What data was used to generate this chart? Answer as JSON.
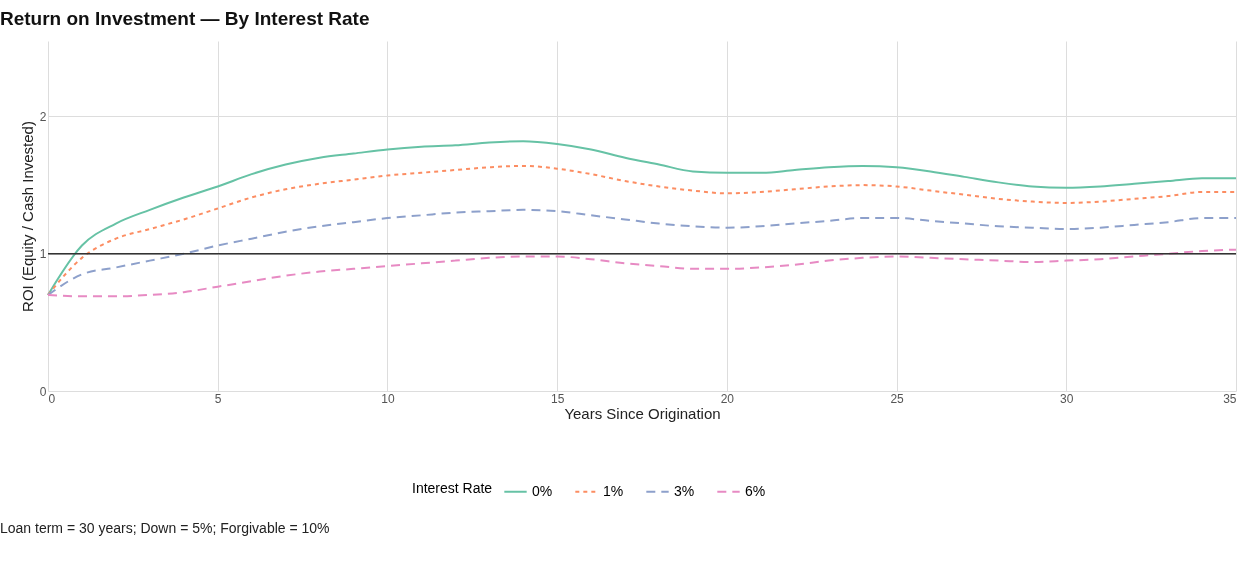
{
  "chart_data": {
    "type": "line",
    "title": "Return on Investment — By Interest Rate",
    "xlabel": "Years Since Origination",
    "ylabel": "ROI (Equity / Cash Invested)",
    "legend_title": "Interest Rate",
    "legend": "bottom",
    "grid": true,
    "x": [
      0,
      1,
      2,
      3,
      4,
      5,
      6,
      7,
      8,
      9,
      10,
      11,
      12,
      13,
      14,
      15,
      16,
      17,
      18,
      19,
      20,
      21,
      22,
      23,
      24,
      25,
      26,
      27,
      28,
      29,
      30,
      31,
      32,
      33,
      34,
      35
    ],
    "xlim": [
      0,
      35
    ],
    "xticks": [
      0,
      5,
      10,
      15,
      20,
      25,
      30,
      35
    ],
    "ylim": [
      0,
      2.55
    ],
    "yticks": [
      0,
      1,
      2
    ],
    "series": [
      {
        "name": "0%",
        "color": "#66c2a5",
        "line_style": "solid",
        "values": [
          0.7,
          1.06,
          1.22,
          1.32,
          1.41,
          1.49,
          1.58,
          1.65,
          1.7,
          1.73,
          1.76,
          1.78,
          1.79,
          1.81,
          1.82,
          1.8,
          1.76,
          1.7,
          1.65,
          1.6,
          1.59,
          1.59,
          1.61,
          1.63,
          1.64,
          1.63,
          1.6,
          1.56,
          1.52,
          1.49,
          1.48,
          1.49,
          1.51,
          1.53,
          1.55,
          1.55
        ]
      },
      {
        "name": "1%",
        "color": "#fc8d62",
        "line_style": "dotted",
        "values": [
          0.7,
          0.97,
          1.11,
          1.18,
          1.25,
          1.33,
          1.41,
          1.47,
          1.51,
          1.54,
          1.57,
          1.59,
          1.61,
          1.63,
          1.64,
          1.62,
          1.58,
          1.53,
          1.49,
          1.46,
          1.44,
          1.45,
          1.47,
          1.49,
          1.5,
          1.49,
          1.46,
          1.43,
          1.4,
          1.38,
          1.37,
          1.38,
          1.4,
          1.42,
          1.45,
          1.45
        ]
      },
      {
        "name": "3%",
        "color": "#8da0cb",
        "line_style": "dashed",
        "values": [
          0.7,
          0.85,
          0.9,
          0.95,
          1.0,
          1.06,
          1.11,
          1.16,
          1.2,
          1.23,
          1.26,
          1.28,
          1.3,
          1.31,
          1.32,
          1.31,
          1.28,
          1.25,
          1.22,
          1.2,
          1.19,
          1.2,
          1.22,
          1.24,
          1.26,
          1.26,
          1.24,
          1.22,
          1.2,
          1.19,
          1.18,
          1.19,
          1.21,
          1.23,
          1.26,
          1.26
        ]
      },
      {
        "name": "6%",
        "color": "#e78ac3",
        "line_style": "dashed",
        "values": [
          0.7,
          0.69,
          0.69,
          0.7,
          0.72,
          0.76,
          0.8,
          0.84,
          0.87,
          0.89,
          0.91,
          0.93,
          0.95,
          0.97,
          0.98,
          0.98,
          0.96,
          0.93,
          0.91,
          0.89,
          0.89,
          0.9,
          0.92,
          0.95,
          0.97,
          0.98,
          0.97,
          0.96,
          0.95,
          0.94,
          0.95,
          0.96,
          0.98,
          1.0,
          1.02,
          1.03
        ]
      }
    ],
    "ref_lines": [
      {
        "axis": "y",
        "value": 1,
        "color": "#333333"
      }
    ],
    "annotations": [
      "Loan term = 30 years; Down = 5%; Forgivable = 10%"
    ]
  }
}
